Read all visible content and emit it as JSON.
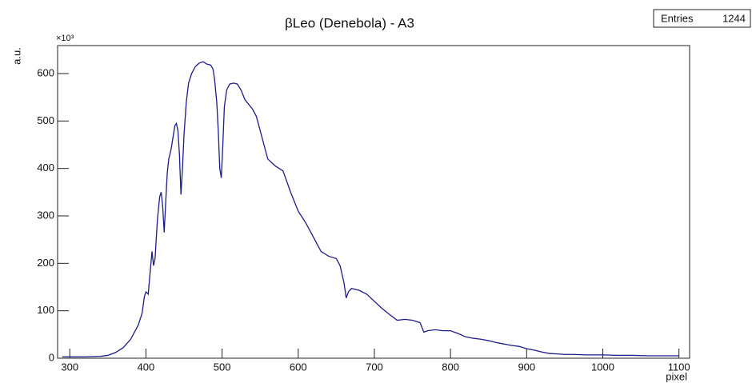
{
  "chart_data": {
    "type": "line",
    "title": "βLeo (Denebola) - A3",
    "stats": {
      "label": "Entries",
      "value": 1244
    },
    "y_label": "a.u.",
    "y_multiplier": "×10³",
    "x_label": "pixel",
    "xlim": [
      284,
      1114
    ],
    "ylim": [
      0,
      659
    ],
    "xticks": [
      300,
      400,
      500,
      600,
      700,
      800,
      900,
      1000,
      1100
    ],
    "yticks": [
      0,
      100,
      200,
      300,
      400,
      500,
      600
    ],
    "series": [
      {
        "name": "βLeo (Denebola) - A3",
        "color": "#1c1c8a",
        "x": [
          290,
          320,
          340,
          350,
          360,
          370,
          380,
          390,
          395,
          398,
          400,
          403,
          406,
          408,
          410,
          412,
          415,
          418,
          420,
          422,
          424,
          426,
          428,
          430,
          433,
          436,
          438,
          440,
          442,
          444,
          446,
          448,
          450,
          453,
          456,
          460,
          465,
          470,
          475,
          480,
          485,
          488,
          490,
          493,
          495,
          497,
          499,
          501,
          503,
          506,
          510,
          515,
          520,
          525,
          530,
          540,
          545,
          550,
          555,
          560,
          570,
          580,
          590,
          600,
          610,
          620,
          630,
          640,
          650,
          655,
          660,
          663,
          666,
          670,
          680,
          690,
          700,
          710,
          720,
          730,
          740,
          750,
          760,
          765,
          770,
          780,
          790,
          800,
          810,
          820,
          830,
          840,
          850,
          860,
          870,
          880,
          890,
          900,
          910,
          920,
          930,
          940,
          950,
          960,
          980,
          1000,
          1020,
          1040,
          1060,
          1080,
          1100
        ],
        "values": [
          3,
          3,
          4,
          6,
          12,
          22,
          40,
          70,
          95,
          130,
          140,
          135,
          190,
          225,
          195,
          210,
          290,
          340,
          350,
          320,
          265,
          330,
          390,
          420,
          440,
          470,
          490,
          495,
          480,
          430,
          345,
          400,
          470,
          540,
          580,
          600,
          615,
          622,
          625,
          620,
          618,
          610,
          590,
          540,
          480,
          400,
          380,
          450,
          530,
          565,
          578,
          580,
          578,
          565,
          545,
          525,
          510,
          480,
          450,
          420,
          405,
          395,
          350,
          310,
          285,
          255,
          225,
          215,
          210,
          195,
          160,
          127,
          140,
          147,
          143,
          135,
          120,
          105,
          92,
          80,
          82,
          80,
          75,
          55,
          58,
          60,
          58,
          58,
          52,
          45,
          42,
          40,
          37,
          33,
          30,
          27,
          25,
          20,
          17,
          13,
          10,
          9,
          8,
          8,
          7,
          7,
          6,
          6,
          5,
          5,
          5
        ]
      }
    ]
  }
}
